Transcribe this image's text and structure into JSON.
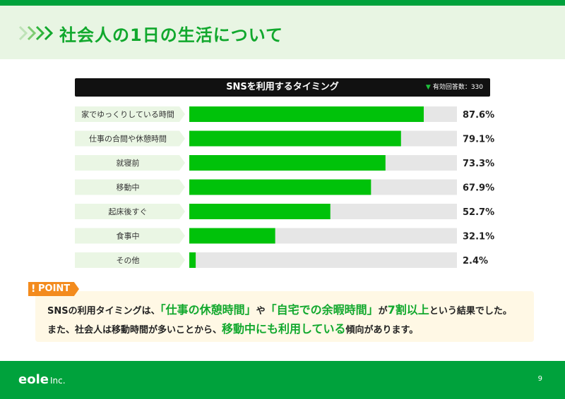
{
  "header": {
    "title": "社会人の1日の生活について"
  },
  "chart_data": {
    "type": "bar",
    "orientation": "horizontal",
    "title": "SNSを利用するタイミング",
    "respondents_note": "有効回答数：330",
    "categories": [
      "家でゆっくりしている時間",
      "仕事の合間や休憩時間",
      "就寝前",
      "移動中",
      "起床後すぐ",
      "食事中",
      "その他"
    ],
    "values": [
      87.6,
      79.1,
      73.3,
      67.9,
      52.7,
      32.1,
      2.4
    ],
    "value_labels": [
      "87.6%",
      "79.1%",
      "73.3%",
      "67.9%",
      "52.7%",
      "32.1%",
      "2.4%"
    ],
    "xlim": [
      0,
      100
    ],
    "grid": false,
    "legend": "none",
    "colors": {
      "bar": "#00c20a",
      "track": "#e6e6e6",
      "label_bg": "#eaf6e4"
    }
  },
  "point": {
    "tag": "POINT",
    "line1": [
      {
        "text": "SNSの利用タイミングは、",
        "hl": false
      },
      {
        "text": "「仕事の休憩時間」",
        "hl": true
      },
      {
        "text": "や",
        "hl": false
      },
      {
        "text": "「自宅での余暇時間」",
        "hl": true
      },
      {
        "text": "が",
        "hl": false
      },
      {
        "text": "7割以上",
        "hl": true
      },
      {
        "text": "という結果でした。",
        "hl": false
      }
    ],
    "line2": [
      {
        "text": "また、社会人は移動時間が多いことから、",
        "hl": false
      },
      {
        "text": "移動中にも利用している",
        "hl": true
      },
      {
        "text": "傾向があります。",
        "hl": false
      }
    ]
  },
  "footer": {
    "logo": "eole",
    "logo_suffix": "Inc.",
    "page_number": "9"
  }
}
